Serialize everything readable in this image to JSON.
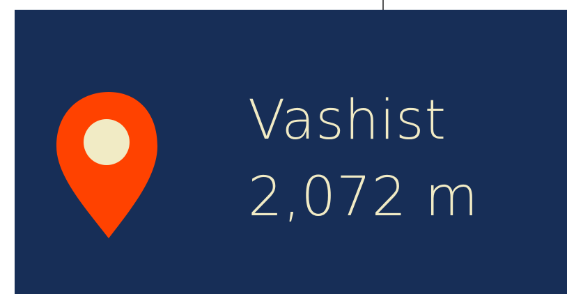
{
  "place": {
    "name": "Vashist",
    "elevation": "2,072 m"
  }
}
